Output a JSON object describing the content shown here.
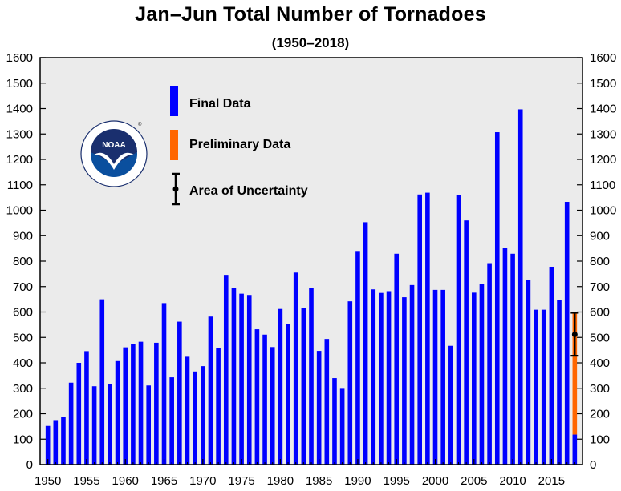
{
  "colors": {
    "final": "#0000ff",
    "preliminary": "#ff6600",
    "plot_background": "#ebebeb",
    "uncertainty": "#000000"
  },
  "logo": {
    "name": "noaa-logo",
    "center_text": "NOAA",
    "ring_text": "NATIONAL OCEANIC AND ATMOSPHERIC ADMINISTRATION",
    "lower_ring_text": "U.S. DEPARTMENT OF COMMERCE"
  },
  "chart_data": {
    "type": "bar",
    "title": "Jan–Jun Total Number of Tornadoes",
    "subtitle": "(1950–2018)",
    "xlabel": "",
    "ylabel": "",
    "xlim": [
      1949,
      2019
    ],
    "ylim": [
      0,
      1600
    ],
    "x_ticks": [
      1950,
      1955,
      1960,
      1965,
      1970,
      1975,
      1980,
      1985,
      1990,
      1995,
      2000,
      2005,
      2010,
      2015
    ],
    "y_ticks": [
      0,
      100,
      200,
      300,
      400,
      500,
      600,
      700,
      800,
      900,
      1000,
      1100,
      1200,
      1300,
      1400,
      1500,
      1600
    ],
    "grid": false,
    "right_axis_mirrors_left": true,
    "legend": {
      "placement": "top-left",
      "entries": [
        "Final Data",
        "Preliminary Data",
        "Area of Uncertainty"
      ]
    },
    "series": [
      {
        "name": "Final Data",
        "x": [
          1950,
          1951,
          1952,
          1953,
          1954,
          1955,
          1956,
          1957,
          1958,
          1959,
          1960,
          1961,
          1962,
          1963,
          1964,
          1965,
          1966,
          1967,
          1968,
          1969,
          1970,
          1971,
          1972,
          1973,
          1974,
          1975,
          1976,
          1977,
          1978,
          1979,
          1980,
          1981,
          1982,
          1983,
          1984,
          1985,
          1986,
          1987,
          1988,
          1989,
          1990,
          1991,
          1992,
          1993,
          1994,
          1995,
          1996,
          1997,
          1998,
          1999,
          2000,
          2001,
          2002,
          2003,
          2004,
          2005,
          2006,
          2007,
          2008,
          2009,
          2010,
          2011,
          2012,
          2013,
          2014,
          2015,
          2016,
          2017,
          2018
        ],
        "values": [
          152,
          175,
          187,
          322,
          400,
          446,
          308,
          650,
          317,
          407,
          461,
          474,
          483,
          311,
          479,
          635,
          343,
          562,
          424,
          366,
          387,
          582,
          457,
          746,
          693,
          672,
          667,
          532,
          511,
          462,
          612,
          553,
          755,
          615,
          693,
          447,
          494,
          340,
          298,
          642,
          840,
          953,
          689,
          675,
          682,
          829,
          658,
          706,
          1062,
          1069,
          687,
          687,
          467,
          1061,
          960,
          676,
          710,
          792,
          1307,
          852,
          829,
          1397,
          727,
          609,
          609,
          778,
          647,
          1033,
          118
        ]
      },
      {
        "name": "Preliminary Data",
        "x": [
          2018
        ],
        "base": [
          118
        ],
        "values": [
          597
        ]
      }
    ],
    "uncertainty": {
      "name": "Area of Uncertainty",
      "x": 2018,
      "low": 428,
      "mid": 512,
      "high": 597
    }
  }
}
